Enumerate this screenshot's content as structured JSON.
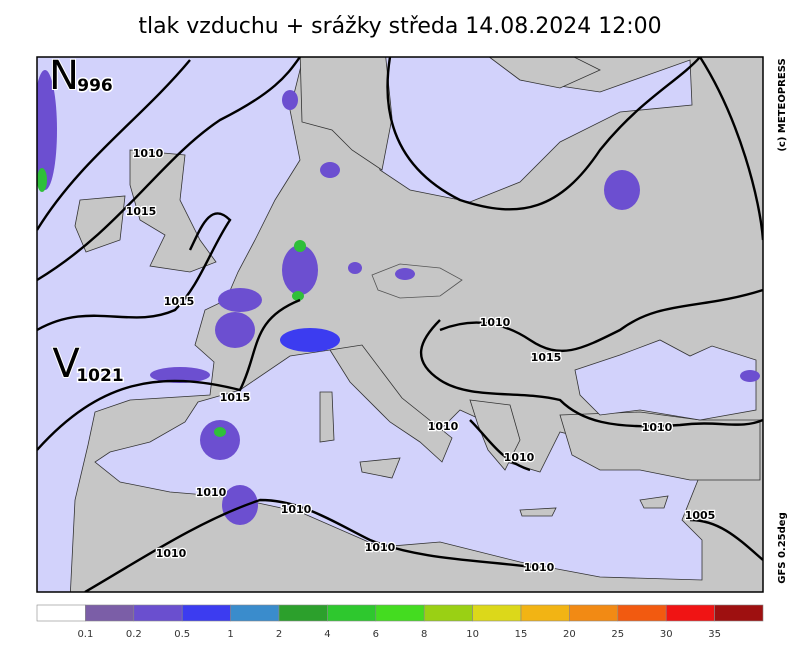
{
  "title": "tlak vzduchu + srážky  středa 14.08.2024 12:00",
  "credit": "(c) METEOPRESS",
  "model": "GFS 0.25deg",
  "centers": [
    {
      "symbol": "N",
      "pressure": 996
    },
    {
      "symbol": "V",
      "pressure": 1021
    }
  ],
  "isobar_labels": [
    1010,
    1015,
    1015,
    1015,
    1010,
    1015,
    1010,
    1010,
    1010,
    1010,
    1010,
    1010,
    1010,
    1010,
    1005
  ],
  "legend": {
    "colors": [
      "#ffffff",
      "#7b5ea7",
      "#6a4fcf",
      "#3c3cf0",
      "#3a8ccc",
      "#2ca02c",
      "#2ec82e",
      "#44dc20",
      "#9ad014",
      "#dcd81a",
      "#f2b414",
      "#f28a14",
      "#f25a10",
      "#f01414",
      "#9e1010"
    ],
    "values": [
      0.1,
      0.2,
      0.5,
      1,
      2,
      4,
      6,
      8,
      10,
      15,
      20,
      25,
      30,
      35
    ]
  }
}
